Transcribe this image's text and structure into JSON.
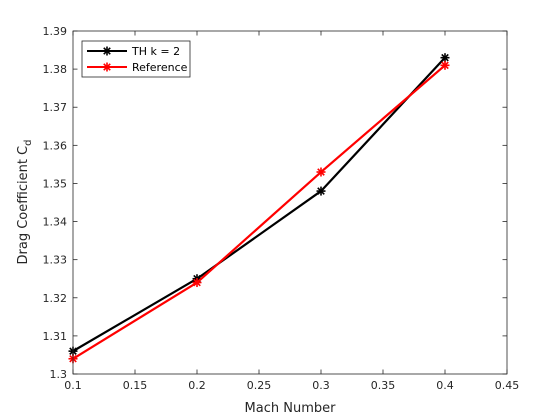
{
  "chart_data": {
    "type": "line",
    "title": "",
    "xlabel": "Mach Number",
    "ylabel": "Drag Coefficient C",
    "ylabel_subscript": "d",
    "xlim": [
      0.1,
      0.45
    ],
    "ylim": [
      1.3,
      1.39
    ],
    "xticks": [
      "0.1",
      "0.15",
      "0.2",
      "0.25",
      "0.3",
      "0.35",
      "0.4",
      "0.45"
    ],
    "yticks": [
      "1.3",
      "1.31",
      "1.32",
      "1.33",
      "1.34",
      "1.35",
      "1.36",
      "1.37",
      "1.38",
      "1.39"
    ],
    "grid": false,
    "legend_position": "top-left",
    "series": [
      {
        "name": "TH k = 2",
        "color": "#000000",
        "marker": "asterisk",
        "x": [
          0.1,
          0.2,
          0.3,
          0.4
        ],
        "y": [
          1.306,
          1.325,
          1.348,
          1.383
        ]
      },
      {
        "name": "Reference",
        "color": "#ff0000",
        "marker": "asterisk",
        "x": [
          0.1,
          0.2,
          0.3,
          0.4
        ],
        "y": [
          1.304,
          1.324,
          1.353,
          1.381
        ]
      }
    ]
  }
}
